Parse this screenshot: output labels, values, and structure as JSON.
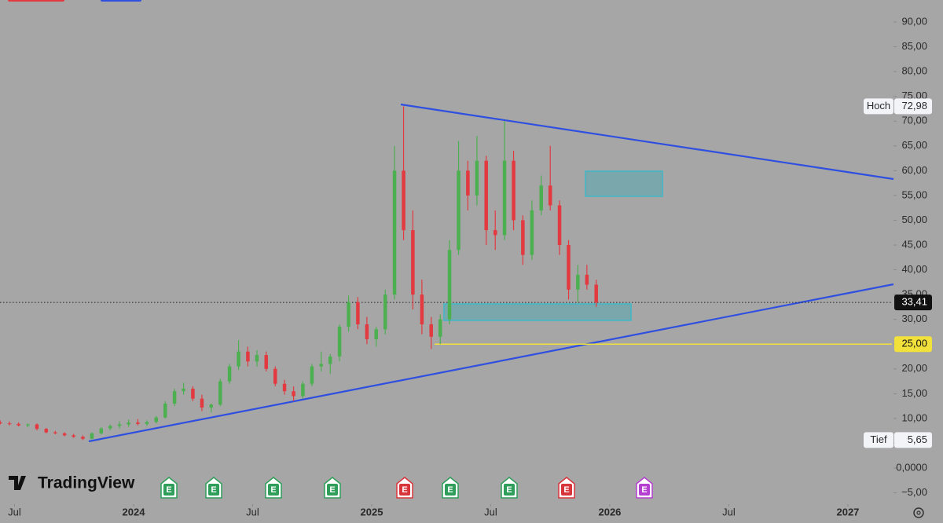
{
  "chart_data": {
    "type": "candlestick",
    "brand": "TradingView",
    "up_color": "#4caf50",
    "down_color": "#e23a40",
    "xlim": [
      2023.439,
      2027.185
    ],
    "xticks": [
      {
        "value": 2023.5,
        "label": "Jul"
      },
      {
        "value": 2024.0,
        "label": "2024"
      },
      {
        "value": 2024.5,
        "label": "Jul"
      },
      {
        "value": 2025.0,
        "label": "2025"
      },
      {
        "value": 2025.5,
        "label": "Jul"
      },
      {
        "value": 2026.0,
        "label": "2026"
      },
      {
        "value": 2026.5,
        "label": "Jul"
      },
      {
        "value": 2027.0,
        "label": "2027"
      }
    ],
    "ylim": [
      -6.97,
      94.44
    ],
    "yticks": [
      {
        "value": -5,
        "label": "−5,00"
      },
      {
        "value": 0,
        "label": "0,0000"
      },
      {
        "value": 5,
        "label": "5,00"
      },
      {
        "value": 10,
        "label": "10,00"
      },
      {
        "value": 15,
        "label": "15,00"
      },
      {
        "value": 20,
        "label": "20,00"
      },
      {
        "value": 25,
        "label": "25,00"
      },
      {
        "value": 30,
        "label": "30,00"
      },
      {
        "value": 35,
        "label": "35,00"
      },
      {
        "value": 40,
        "label": "40,00"
      },
      {
        "value": 45,
        "label": "45,00"
      },
      {
        "value": 50,
        "label": "50,00"
      },
      {
        "value": 55,
        "label": "55,00"
      },
      {
        "value": 60,
        "label": "60,00"
      },
      {
        "value": 65,
        "label": "65,00"
      },
      {
        "value": 70,
        "label": "70,00"
      },
      {
        "value": 75,
        "label": "75,00"
      },
      {
        "value": 80,
        "label": "80,00"
      },
      {
        "value": 85,
        "label": "85,00"
      },
      {
        "value": 90,
        "label": "90,00"
      }
    ],
    "x": [
      2023.44,
      2023.479,
      2023.517,
      2023.556,
      2023.594,
      2023.633,
      2023.671,
      2023.71,
      2023.748,
      2023.787,
      2023.825,
      2023.864,
      2023.902,
      2023.941,
      2023.979,
      2024.018,
      2024.056,
      2024.095,
      2024.133,
      2024.172,
      2024.21,
      2024.249,
      2024.287,
      2024.326,
      2024.364,
      2024.403,
      2024.441,
      2024.48,
      2024.518,
      2024.557,
      2024.595,
      2024.634,
      2024.672,
      2024.711,
      2024.749,
      2024.788,
      2024.826,
      2024.865,
      2024.903,
      2024.942,
      2024.98,
      2025.019,
      2025.057,
      2025.096,
      2025.134,
      2025.173,
      2025.211,
      2025.25,
      2025.288,
      2025.327,
      2025.365,
      2025.404,
      2025.442,
      2025.481,
      2025.519,
      2025.558,
      2025.596,
      2025.635,
      2025.673,
      2025.712,
      2025.75,
      2025.789,
      2025.827,
      2025.866,
      2025.904,
      2025.943
    ],
    "open": [
      9.2,
      9.0,
      8.9,
      8.6,
      8.8,
      7.9,
      7.2,
      7.0,
      6.6,
      6.3,
      5.9,
      7.0,
      8.0,
      8.5,
      8.8,
      9.2,
      8.9,
      9.3,
      10.2,
      13.0,
      15.5,
      16.0,
      14.0,
      12.2,
      12.8,
      17.5,
      20.5,
      23.5,
      21.5,
      22.8,
      20.0,
      17.0,
      15.5,
      14.5,
      17.0,
      20.5,
      21.0,
      22.5,
      28.5,
      33.5,
      29.0,
      26.0,
      28.0,
      35.0,
      60.0,
      48.0,
      35.0,
      29.0,
      26.5,
      30.0,
      44.0,
      60.0,
      55.0,
      62.0,
      48.0,
      47.0,
      62.0,
      50.0,
      43.0,
      52.0,
      57.0,
      53.0,
      45.0,
      36.0,
      39.0,
      37.0
    ],
    "high": [
      9.6,
      9.4,
      9.2,
      9.0,
      9.0,
      8.1,
      7.5,
      7.2,
      6.9,
      6.6,
      7.2,
      8.2,
      8.8,
      9.4,
      9.8,
      9.9,
      9.6,
      10.5,
      13.5,
      16.0,
      17.2,
      16.5,
      14.8,
      13.0,
      18.0,
      21.0,
      25.8,
      24.5,
      23.8,
      23.5,
      20.5,
      17.8,
      16.5,
      17.5,
      21.0,
      23.5,
      23.0,
      29.0,
      34.8,
      34.5,
      30.5,
      28.5,
      36.0,
      65.0,
      72.98,
      52.0,
      38.0,
      30.5,
      31.0,
      46.0,
      66.0,
      62.0,
      67.0,
      63.0,
      52.0,
      70.0,
      64.0,
      51.0,
      54.0,
      59.0,
      65.0,
      54.0,
      46.0,
      41.0,
      41.0,
      38.0
    ],
    "low": [
      8.8,
      8.6,
      8.4,
      8.2,
      7.6,
      7.0,
      6.8,
      6.4,
      6.1,
      5.65,
      5.8,
      6.8,
      7.6,
      8.0,
      8.3,
      8.6,
      8.5,
      9.0,
      10.0,
      12.5,
      14.8,
      13.5,
      11.5,
      11.2,
      12.5,
      17.0,
      19.8,
      20.5,
      20.5,
      19.5,
      16.5,
      14.8,
      13.5,
      14.0,
      16.5,
      19.5,
      19.0,
      21.5,
      27.5,
      28.0,
      25.0,
      24.5,
      27.0,
      34.0,
      46.0,
      32.0,
      27.0,
      24.0,
      25.0,
      29.0,
      43.0,
      52.0,
      53.0,
      45.0,
      44.0,
      46.0,
      48.0,
      41.0,
      42.0,
      51.0,
      52.0,
      43.0,
      34.0,
      33.5,
      36.0,
      32.5
    ],
    "close": [
      9.0,
      8.9,
      8.6,
      8.8,
      7.9,
      7.2,
      7.0,
      6.6,
      6.3,
      5.9,
      7.0,
      8.0,
      8.5,
      8.8,
      9.2,
      8.9,
      9.3,
      10.2,
      13.0,
      15.5,
      16.0,
      14.0,
      12.2,
      12.8,
      17.5,
      20.5,
      23.5,
      21.5,
      22.8,
      20.0,
      17.0,
      15.5,
      14.5,
      17.0,
      20.5,
      21.0,
      22.5,
      28.5,
      33.5,
      29.0,
      26.0,
      28.0,
      35.0,
      60.0,
      48.0,
      35.0,
      29.0,
      26.5,
      30.0,
      44.0,
      60.0,
      55.0,
      62.0,
      48.0,
      47.0,
      62.0,
      50.0,
      43.0,
      52.0,
      57.0,
      53.0,
      45.0,
      36.0,
      39.0,
      37.0,
      33.41
    ],
    "high_marker": {
      "label": "Hoch",
      "value": 72.98,
      "value_label": "72,98"
    },
    "low_marker": {
      "label": "Tief",
      "value": 5.65,
      "value_label": "5,65"
    },
    "last_price": {
      "value": 33.41,
      "label": "33,41"
    },
    "level": {
      "value": 25,
      "label": "25,00",
      "color": "#f2e13a"
    },
    "events": [
      {
        "label": "E",
        "color": "#2e9e5a"
      },
      {
        "label": "E",
        "color": "#2e9e5a"
      },
      {
        "label": "E",
        "color": "#2e9e5a"
      },
      {
        "label": "E",
        "color": "#2e9e5a"
      },
      {
        "label": "E",
        "color": "#d8343c"
      },
      {
        "label": "E",
        "color": "#2e9e5a"
      },
      {
        "label": "E",
        "color": "#2e9e5a"
      },
      {
        "label": "E",
        "color": "#d8343c"
      },
      {
        "label": "E",
        "color": "#b43fd0"
      }
    ]
  }
}
